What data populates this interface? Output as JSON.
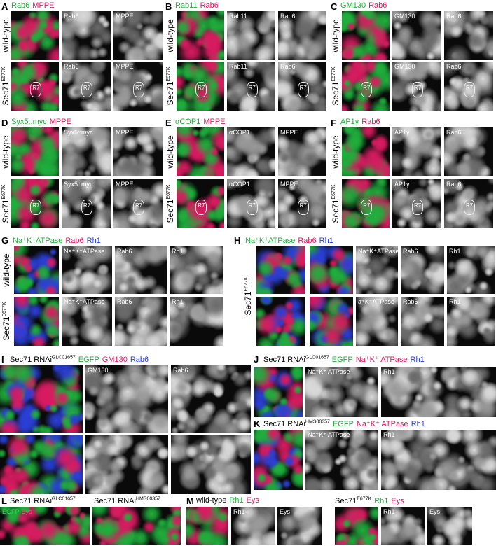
{
  "panels": [
    {
      "letter": "A",
      "header": [
        [
          {
            "text": "Rab6",
            "color": "#1fae3c"
          },
          {
            "text": "MPPE",
            "color": "#d81b60"
          }
        ]
      ],
      "row_labels": [
        {
          "text": "wild-type"
        },
        {
          "text": "Sec71",
          "sup": "E677K"
        }
      ],
      "images": [
        [
          {
            "kind": "merge"
          },
          {
            "kind": "gray",
            "label": "Rab6"
          },
          {
            "kind": "gray",
            "label": "MPPE"
          }
        ],
        [
          {
            "kind": "merge",
            "marker": "R7"
          },
          {
            "kind": "gray",
            "label": "Rab6",
            "marker": "R7"
          },
          {
            "kind": "gray",
            "label": "MPPE",
            "marker": "R7"
          }
        ]
      ]
    },
    {
      "letter": "B",
      "header": [
        [
          {
            "text": "Rab11",
            "color": "#1fae3c"
          },
          {
            "text": "Rab6",
            "color": "#d81b60"
          }
        ]
      ],
      "row_labels": [
        {
          "text": "wild-type"
        },
        {
          "text": "Sec71",
          "sup": "E677K"
        }
      ],
      "images": [
        [
          {
            "kind": "merge"
          },
          {
            "kind": "gray",
            "label": "Rab11"
          },
          {
            "kind": "gray",
            "label": "Rab6"
          }
        ],
        [
          {
            "kind": "merge",
            "marker": "R7"
          },
          {
            "kind": "gray",
            "label": "Rab11",
            "marker": "R7"
          },
          {
            "kind": "gray",
            "label": "Rab6",
            "marker": "R7"
          }
        ]
      ]
    },
    {
      "letter": "C",
      "header": [
        [
          {
            "text": "GM130",
            "color": "#1fae3c"
          },
          {
            "text": "Rab6",
            "color": "#d81b60"
          }
        ]
      ],
      "row_labels": [
        {
          "text": "wild-type"
        },
        {
          "text": "Sec71",
          "sup": "E677K"
        }
      ],
      "images": [
        [
          {
            "kind": "merge"
          },
          {
            "kind": "gray",
            "label": "GM130"
          },
          {
            "kind": "gray",
            "label": "Rab6"
          }
        ],
        [
          {
            "kind": "merge",
            "marker": "R7"
          },
          {
            "kind": "gray",
            "label": "GM130",
            "marker": "R7"
          },
          {
            "kind": "gray",
            "label": "Rab6",
            "marker": "R7"
          }
        ]
      ]
    },
    {
      "letter": "D",
      "header": [
        [
          {
            "text": "Syx5::myc",
            "color": "#1fae3c"
          },
          {
            "text": "MPPE",
            "color": "#d81b60"
          }
        ]
      ],
      "row_labels": [
        {
          "text": "wild-type"
        },
        {
          "text": "Sec71",
          "sup": "E677K"
        }
      ],
      "images": [
        [
          {
            "kind": "merge"
          },
          {
            "kind": "gray",
            "label": "Syx5::myc"
          },
          {
            "kind": "gray",
            "label": "MPPE"
          }
        ],
        [
          {
            "kind": "merge",
            "marker": "R7"
          },
          {
            "kind": "gray",
            "label": "Syx5::myc",
            "marker": "R7"
          },
          {
            "kind": "gray",
            "label": "MPPE",
            "marker": "R7"
          }
        ]
      ]
    },
    {
      "letter": "E",
      "header": [
        [
          {
            "text": "αCOP1",
            "color": "#1fae3c"
          },
          {
            "text": "MPPE",
            "color": "#d81b60"
          }
        ]
      ],
      "row_labels": [
        {
          "text": "wild-type"
        },
        {
          "text": "Sec71",
          "sup": "E677K"
        }
      ],
      "images": [
        [
          {
            "kind": "merge"
          },
          {
            "kind": "gray",
            "label": "αCOP1"
          },
          {
            "kind": "gray",
            "label": "MPPE"
          }
        ],
        [
          {
            "kind": "merge",
            "marker": "R7"
          },
          {
            "kind": "gray",
            "label": "αCOP1",
            "marker": "R7"
          },
          {
            "kind": "gray",
            "label": "MPPE",
            "marker": "R7"
          }
        ]
      ]
    },
    {
      "letter": "F",
      "header": [
        [
          {
            "text": "AP1γ",
            "color": "#1fae3c"
          },
          {
            "text": "Rab6",
            "color": "#d81b60"
          }
        ]
      ],
      "row_labels": [
        {
          "text": "wild-type"
        },
        {
          "text": "Sec71",
          "sup": "E677K"
        }
      ],
      "images": [
        [
          {
            "kind": "merge"
          },
          {
            "kind": "gray",
            "label": "AP1γ"
          },
          {
            "kind": "gray",
            "label": "Rab6"
          }
        ],
        [
          {
            "kind": "merge",
            "marker": "R7"
          },
          {
            "kind": "gray",
            "label": "AP1γ",
            "marker": "R7"
          },
          {
            "kind": "gray",
            "label": "Rab6",
            "marker": "R7"
          }
        ]
      ]
    },
    {
      "letter": "G",
      "header": [
        [
          {
            "text": "Na⁺K⁺ATPase",
            "color": "#1fae3c"
          },
          {
            "text": "Rab6",
            "color": "#d81b60"
          },
          {
            "text": "Rh1",
            "color": "#2a3fd6"
          }
        ]
      ],
      "row_labels": [
        {
          "text": "wild-type"
        },
        {
          "text": "Sec71",
          "sup": "E677K"
        }
      ],
      "images": [
        [
          {
            "kind": "merge"
          },
          {
            "kind": "gray",
            "label": "Na⁺K⁺ATPase"
          },
          {
            "kind": "gray",
            "label": "Rab6"
          },
          {
            "kind": "gray",
            "label": "Rh1"
          }
        ],
        [
          {
            "kind": "merge"
          },
          {
            "kind": "gray",
            "label": "Na⁺K⁺ATPase"
          },
          {
            "kind": "gray",
            "label": "Rab6"
          },
          {
            "kind": "gray",
            "label": "Rh1"
          }
        ]
      ]
    },
    {
      "letter": "H",
      "header": [
        [
          {
            "text": "Na⁺K⁺ATPase",
            "color": "#1fae3c"
          },
          {
            "text": "Rab6",
            "color": "#d81b60"
          },
          {
            "text": "Rh1",
            "color": "#2a3fd6"
          }
        ]
      ],
      "row_labels": [
        {
          "text": "Sec71",
          "sup": "E677K"
        }
      ],
      "images": [
        [
          {
            "kind": "merge"
          },
          {
            "kind": "merge"
          },
          {
            "kind": "gray",
            "label": "Na⁺K⁺ATPase"
          },
          {
            "kind": "gray",
            "label": "Rab6"
          },
          {
            "kind": "gray",
            "label": "Rh1"
          }
        ],
        [
          {
            "kind": "merge"
          },
          {
            "kind": "merge"
          },
          {
            "kind": "gray",
            "label": "a⁺K⁺ATPase"
          },
          {
            "kind": "gray",
            "label": "Rab6"
          },
          {
            "kind": "gray",
            "label": "Rh1"
          }
        ]
      ]
    },
    {
      "letter": "I",
      "header": [
        [
          {
            "text": "Sec71 RNAi",
            "sup": "GLC01657"
          },
          {
            "text": "EGFP",
            "color": "#1fae3c"
          },
          {
            "text": "GM130",
            "color": "#d81b60"
          },
          {
            "text": "Rab6",
            "color": "#2a3fd6"
          }
        ]
      ],
      "row_labels": [],
      "images": [
        [
          {
            "kind": "merge"
          },
          {
            "kind": "gray",
            "label": "GM130"
          },
          {
            "kind": "gray",
            "label": "Rab6"
          }
        ],
        [
          {
            "kind": "merge"
          },
          {
            "kind": "gray"
          },
          {
            "kind": "gray"
          }
        ]
      ]
    },
    {
      "letter": "J",
      "header": [
        [
          {
            "text": "Sec71 RNAi",
            "sup": "GLC01657"
          },
          {
            "text": "EGFP",
            "color": "#1fae3c"
          },
          {
            "text": "Na⁺K⁺ ATPase",
            "color": "#d81b60"
          },
          {
            "text": "Rh1",
            "color": "#2a3fd6"
          }
        ]
      ],
      "row_labels": [],
      "images": [
        [
          {
            "kind": "merge"
          },
          {
            "kind": "gray",
            "label": "Na⁺K⁺ ATPase"
          },
          {
            "kind": "gray",
            "label": "Rh1"
          }
        ]
      ]
    },
    {
      "letter": "K",
      "header": [
        [
          {
            "text": "Sec71 RNAi",
            "sup": "HMS00357"
          },
          {
            "text": "EGFP",
            "color": "#1fae3c"
          },
          {
            "text": "Na⁺K⁺ ATPase",
            "color": "#d81b60"
          },
          {
            "text": "Rh1",
            "color": "#2a3fd6"
          }
        ]
      ],
      "row_labels": [],
      "images": [
        [
          {
            "kind": "merge"
          },
          {
            "kind": "gray",
            "label": "Na⁺K⁺ ATPase"
          },
          {
            "kind": "gray",
            "label": "Rh1"
          }
        ]
      ]
    },
    {
      "letter": "L",
      "header": [
        [
          {
            "text": "Sec71 RNAi",
            "sup": "GLC01657"
          }
        ],
        [
          {
            "text": "Sec71 RNAi",
            "sup": "HMS00357"
          }
        ]
      ],
      "row_labels": [],
      "images": [
        [
          {
            "kind": "merge",
            "label_parts": [
              {
                "text": "EGFP",
                "color": "#3fd65c"
              },
              {
                "text": "Eys",
                "color": "#ff4d7d"
              }
            ]
          },
          {
            "kind": "merge"
          }
        ]
      ]
    },
    {
      "letter": "M",
      "header": [
        [
          {
            "text": "wild-type"
          },
          {
            "text": "Rh1",
            "color": "#1fae3c"
          },
          {
            "text": "Eys",
            "color": "#d81b60"
          }
        ]
      ],
      "row_labels": [],
      "images": [
        [
          {
            "kind": "merge"
          },
          {
            "kind": "gray",
            "label": "Rh1"
          },
          {
            "kind": "gray",
            "label": "Eys"
          }
        ]
      ]
    },
    {
      "header": [
        [
          {
            "text": "Sec71",
            "sup": "E677K"
          },
          {
            "text": "Rh1",
            "color": "#1fae3c"
          },
          {
            "text": "Eys",
            "color": "#d81b60"
          }
        ]
      ],
      "row_labels": [],
      "images": [
        [
          {
            "kind": "merge"
          },
          {
            "kind": "gray",
            "label": "Rh1"
          },
          {
            "kind": "gray",
            "label": "Eys"
          }
        ]
      ]
    }
  ]
}
